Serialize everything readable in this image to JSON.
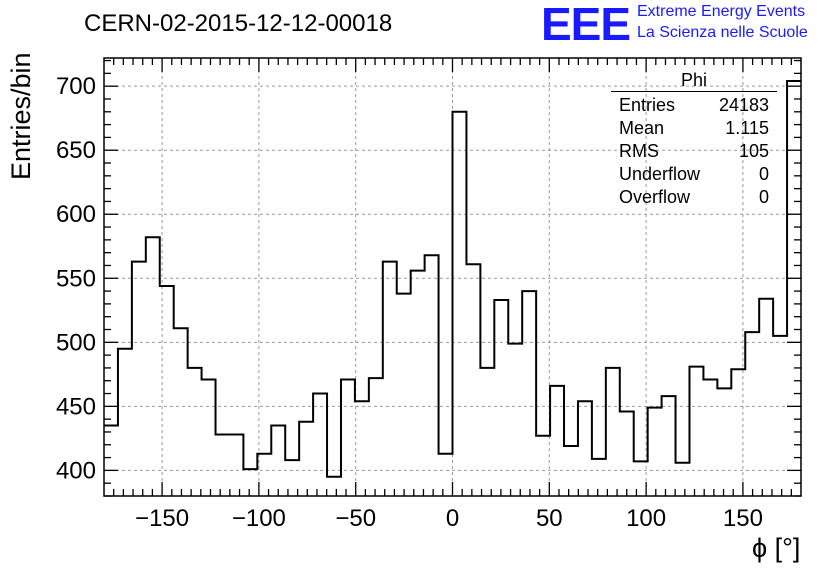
{
  "header": {
    "title": "CERN-02-2015-12-12-00018",
    "logo_text": "EEE",
    "logo_line1": "Extreme Energy Events",
    "logo_line2": "La Scienza nelle Scuole"
  },
  "stats_box": {
    "title": "Phi",
    "rows": [
      {
        "label": "Entries",
        "value": "24183"
      },
      {
        "label": "Mean",
        "value": "1.115"
      },
      {
        "label": "RMS",
        "value": "105"
      },
      {
        "label": "Underflow",
        "value": "0"
      },
      {
        "label": "Overflow",
        "value": "0"
      }
    ]
  },
  "colors": {
    "line": "#000000",
    "grid": "#9a9a9a",
    "logo": "#1a1aff"
  },
  "chart_data": {
    "type": "histogram",
    "title": "CERN-02-2015-12-12-00018",
    "xlabel": "ϕ [°]",
    "ylabel": "Entries/bin",
    "xlim": [
      -180,
      180
    ],
    "ylim": [
      380,
      722
    ],
    "bin_width": 7.2,
    "xticks": [
      -150,
      -100,
      -50,
      0,
      50,
      100,
      150
    ],
    "xtick_labels": [
      "−150",
      "−100",
      "−50",
      "0",
      "50",
      "100",
      "150"
    ],
    "yticks": [
      400,
      450,
      500,
      550,
      600,
      650,
      700
    ],
    "ytick_labels": [
      "400",
      "450",
      "500",
      "550",
      "600",
      "650",
      "700"
    ],
    "grid": true,
    "bin_edges_start": -180,
    "values": [
      435,
      495,
      563,
      582,
      544,
      511,
      480,
      471,
      428,
      428,
      401,
      413,
      435,
      408,
      438,
      460,
      395,
      471,
      454,
      472,
      563,
      538,
      556,
      568,
      413,
      680,
      561,
      480,
      533,
      499,
      540,
      427,
      466,
      419,
      454,
      409,
      480,
      446,
      407,
      449,
      458,
      406,
      481,
      471,
      464,
      479,
      508,
      534,
      505,
      704
    ]
  }
}
